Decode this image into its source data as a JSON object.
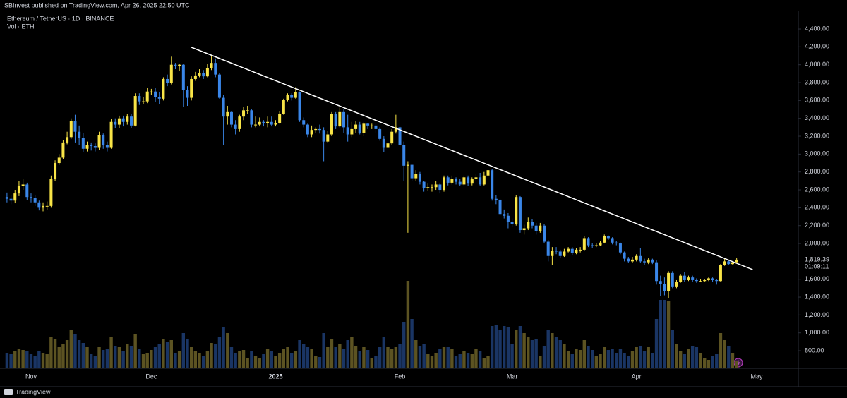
{
  "header": "SBInvest published on TradingView.com, Apr 26, 2025 22:50 UTC",
  "footer": "TradingView",
  "chart_data": {
    "type": "candlestick",
    "title": "Ethereum / TetherUS · 1D · BINANCE",
    "volume_label": "Vol · ETH",
    "up_color": "#f8e447",
    "down_color": "#3a86e8",
    "volume_up_color": "#5c5322",
    "volume_down_color": "#1a3564",
    "trendline_color": "#ffffff",
    "grid": false,
    "ylim": [
      603,
      4495
    ],
    "yticks": [
      {
        "value": 800,
        "label": "800.00"
      },
      {
        "value": 1000,
        "label": "1,000.00"
      },
      {
        "value": 1200,
        "label": "1,200.00"
      },
      {
        "value": 1400,
        "label": "1,400.00"
      },
      {
        "value": 1600,
        "label": "1,600.00"
      },
      {
        "value": 1800,
        "label": "1,800.00"
      },
      {
        "value": 2000,
        "label": "2,000.00"
      },
      {
        "value": 2200,
        "label": "2,200.00"
      },
      {
        "value": 2400,
        "label": "2,400.00"
      },
      {
        "value": 2600,
        "label": "2,600.00"
      },
      {
        "value": 2800,
        "label": "2,800.00"
      },
      {
        "value": 3000,
        "label": "3,000.00"
      },
      {
        "value": 3200,
        "label": "3,200.00"
      },
      {
        "value": 3400,
        "label": "3,400.00"
      },
      {
        "value": 3600,
        "label": "3,600.00"
      },
      {
        "value": 3800,
        "label": "3,800.00"
      },
      {
        "value": 4000,
        "label": "4,000.00"
      },
      {
        "value": 4200,
        "label": "4,200.00"
      },
      {
        "value": 4400,
        "label": "4,400.00"
      }
    ],
    "categories": [
      null,
      null,
      null,
      null,
      null,
      null,
      "Nov",
      null,
      null,
      null,
      null,
      null,
      null,
      null,
      null,
      null,
      null,
      null,
      null,
      null,
      null,
      null,
      null,
      null,
      null,
      null,
      null,
      null,
      null,
      null,
      null,
      null,
      null,
      null,
      null,
      null,
      "Dec",
      null,
      null,
      null,
      null,
      null,
      null,
      null,
      null,
      null,
      null,
      null,
      null,
      null,
      null,
      null,
      null,
      null,
      null,
      null,
      null,
      null,
      null,
      null,
      null,
      null,
      null,
      null,
      null,
      null,
      null,
      "2025",
      null,
      null,
      null,
      null,
      null,
      null,
      null,
      null,
      null,
      null,
      null,
      null,
      null,
      null,
      null,
      null,
      null,
      null,
      null,
      null,
      null,
      null,
      null,
      null,
      null,
      null,
      null,
      null,
      null,
      null,
      "Feb",
      null,
      null,
      null,
      null,
      null,
      null,
      null,
      null,
      null,
      null,
      null,
      null,
      null,
      null,
      null,
      null,
      null,
      null,
      null,
      null,
      null,
      null,
      null,
      null,
      null,
      null,
      null,
      "Mar",
      null,
      null,
      null,
      null,
      null,
      null,
      null,
      null,
      null,
      null,
      null,
      null,
      null,
      null,
      null,
      null,
      null,
      null,
      null,
      null,
      null,
      null,
      null,
      null,
      null,
      null,
      null,
      null,
      null,
      null,
      "Apr",
      null,
      null,
      null,
      null,
      null,
      null,
      null,
      null,
      null,
      null,
      null,
      null,
      null,
      null,
      null,
      null,
      null,
      null,
      null,
      null,
      null,
      null,
      null,
      null,
      null,
      null,
      null,
      null,
      null,
      "May"
    ],
    "open": [
      2520,
      2500,
      2480,
      2560,
      2640,
      2660,
      2520,
      2510,
      2460,
      2400,
      2420,
      2420,
      2720,
      2900,
      2960,
      3130,
      3190,
      3370,
      3250,
      3180,
      3060,
      3100,
      3090,
      3070,
      3210,
      3100,
      3070,
      3360,
      3330,
      3400,
      3360,
      3420,
      3320,
      3650,
      3590,
      3590,
      3700,
      3700,
      3640,
      3620,
      3840,
      3800,
      4000,
      3990,
      4000,
      3720,
      3630,
      3840,
      3880,
      3910,
      3870,
      3960,
      4020,
      3890,
      3630,
      3420,
      3470,
      3330,
      3280,
      3420,
      3490,
      3490,
      3330,
      3330,
      3360,
      3350,
      3360,
      3330,
      3350,
      3450,
      3610,
      3660,
      3630,
      3690,
      3380,
      3330,
      3220,
      3270,
      3280,
      3270,
      3140,
      3220,
      3450,
      3310,
      3470,
      3300,
      3220,
      3280,
      3330,
      3240,
      3340,
      3320,
      3320,
      3280,
      3170,
      3070,
      3120,
      3250,
      3300,
      3100,
      2870,
      2880,
      2730,
      2780,
      2690,
      2620,
      2630,
      2630,
      2660,
      2600,
      2740,
      2680,
      2720,
      2690,
      2660,
      2740,
      2670,
      2720,
      2740,
      2660,
      2760,
      2820,
      2500,
      2490,
      2330,
      2310,
      2240,
      2220,
      2520,
      2150,
      2170,
      2240,
      2200,
      2140,
      2200,
      2020,
      1860,
      1920,
      1910,
      1860,
      1910,
      1940,
      1890,
      1930,
      1930,
      2060,
      1980,
      1970,
      1980,
      2010,
      2080,
      2060,
      2010,
      2000,
      1900,
      1830,
      1800,
      1820,
      1860,
      1800,
      1790,
      1820,
      1790,
      1580,
      1550,
      1470,
      1670,
      1520,
      1570,
      1640,
      1590,
      1620,
      1590,
      1580,
      1580,
      1590,
      1610,
      1590,
      1580,
      1760,
      1800,
      1770,
      1790,
      null,
      null,
      null,
      null,
      null
    ],
    "high": [
      2570,
      2540,
      2600,
      2700,
      2720,
      2680,
      2560,
      2540,
      2480,
      2460,
      2470,
      2760,
      2930,
      3000,
      3160,
      3250,
      3400,
      3440,
      3320,
      3240,
      3140,
      3130,
      3120,
      3250,
      3230,
      3140,
      3390,
      3400,
      3430,
      3430,
      3450,
      3450,
      3680,
      3680,
      3640,
      3740,
      3730,
      3740,
      3690,
      3860,
      3890,
      4090,
      4020,
      4010,
      4010,
      3760,
      3870,
      3920,
      3950,
      3940,
      4010,
      4110,
      4070,
      3910,
      3660,
      3540,
      3480,
      3380,
      3440,
      3530,
      3540,
      3500,
      3420,
      3410,
      3380,
      3420,
      3420,
      3380,
      3480,
      3620,
      3680,
      3680,
      3750,
      3700,
      3410,
      3340,
      3320,
      3300,
      3330,
      3300,
      3260,
      3470,
      3470,
      3520,
      3500,
      3440,
      3360,
      3370,
      3360,
      3360,
      3350,
      3340,
      3340,
      3300,
      3200,
      3160,
      3280,
      3440,
      3320,
      3140,
      2920,
      2880,
      2820,
      2800,
      2700,
      2670,
      2660,
      2700,
      2680,
      2760,
      2760,
      2760,
      2740,
      2720,
      2760,
      2760,
      2740,
      2780,
      2790,
      2800,
      2860,
      2830,
      2540,
      2500,
      2380,
      2340,
      2280,
      2540,
      2530,
      2210,
      2290,
      2270,
      2230,
      2230,
      2220,
      2040,
      1960,
      1960,
      1930,
      1940,
      1960,
      1960,
      1950,
      1960,
      2080,
      2070,
      2000,
      2000,
      2030,
      2100,
      2090,
      2070,
      2030,
      2010,
      1910,
      1850,
      1850,
      1880,
      1950,
      1830,
      1840,
      1830,
      1810,
      1640,
      1620,
      1690,
      1690,
      1590,
      1660,
      1680,
      1640,
      1640,
      1610,
      1600,
      1600,
      1620,
      1620,
      1600,
      1770,
      1830,
      1810,
      1800,
      1840,
      null,
      null,
      null,
      null,
      null
    ],
    "low": [
      2460,
      2440,
      2450,
      2530,
      2600,
      2490,
      2460,
      2420,
      2370,
      2360,
      2380,
      2400,
      2700,
      2880,
      2940,
      3110,
      3170,
      3130,
      3100,
      3020,
      3030,
      3040,
      3030,
      3050,
      3060,
      3030,
      3060,
      3290,
      3290,
      3310,
      3330,
      3290,
      3310,
      3550,
      3560,
      3570,
      3660,
      3580,
      3560,
      3600,
      3760,
      3780,
      3950,
      3930,
      3530,
      3540,
      3600,
      3820,
      3860,
      3840,
      3860,
      3940,
      3860,
      3620,
      3100,
      3330,
      3300,
      3220,
      3250,
      3380,
      3450,
      3300,
      3300,
      3310,
      3310,
      3300,
      3310,
      3310,
      3340,
      3440,
      3590,
      3600,
      3620,
      3360,
      3300,
      3190,
      3190,
      3240,
      3230,
      2920,
      3130,
      3200,
      3280,
      3300,
      3240,
      3140,
      3190,
      3240,
      3220,
      3200,
      3280,
      3280,
      3240,
      3150,
      3020,
      3040,
      3100,
      3230,
      3080,
      2700,
      2120,
      2700,
      2700,
      2660,
      2580,
      2590,
      2580,
      2600,
      2560,
      2580,
      2650,
      2660,
      2660,
      2640,
      2650,
      2640,
      2650,
      2700,
      2640,
      2650,
      2740,
      2480,
      2440,
      2310,
      2280,
      2170,
      2190,
      2200,
      2120,
      2100,
      2150,
      2170,
      2100,
      2120,
      2000,
      1800,
      1760,
      1880,
      1840,
      1850,
      1900,
      1870,
      1880,
      1900,
      1920,
      1960,
      1950,
      1960,
      1970,
      2000,
      2040,
      1990,
      1980,
      1880,
      1800,
      1780,
      1780,
      1800,
      1780,
      1760,
      1770,
      1770,
      1540,
      1410,
      1420,
      1390,
      1500,
      1500,
      1560,
      1570,
      1580,
      1570,
      1560,
      1570,
      1570,
      1580,
      1570,
      1540,
      1570,
      1750,
      1760,
      1760,
      1780,
      null,
      null,
      null,
      null,
      null
    ],
    "close": [
      2500,
      2480,
      2560,
      2640,
      2660,
      2520,
      2510,
      2460,
      2400,
      2420,
      2420,
      2720,
      2900,
      2960,
      3130,
      3190,
      3370,
      3250,
      3180,
      3060,
      3100,
      3090,
      3070,
      3210,
      3100,
      3070,
      3360,
      3330,
      3400,
      3360,
      3420,
      3320,
      3650,
      3590,
      3590,
      3700,
      3700,
      3640,
      3620,
      3840,
      3800,
      4000,
      3990,
      4000,
      3720,
      3630,
      3840,
      3880,
      3910,
      3870,
      3960,
      4020,
      3890,
      3630,
      3420,
      3470,
      3330,
      3280,
      3420,
      3490,
      3490,
      3330,
      3330,
      3360,
      3350,
      3360,
      3330,
      3350,
      3450,
      3610,
      3660,
      3630,
      3690,
      3380,
      3330,
      3220,
      3270,
      3280,
      3270,
      3140,
      3220,
      3450,
      3310,
      3470,
      3300,
      3220,
      3280,
      3330,
      3240,
      3340,
      3320,
      3320,
      3280,
      3170,
      3070,
      3120,
      3250,
      3300,
      3100,
      2870,
      2880,
      2730,
      2780,
      2690,
      2620,
      2630,
      2630,
      2660,
      2600,
      2740,
      2680,
      2720,
      2690,
      2660,
      2740,
      2670,
      2720,
      2740,
      2660,
      2760,
      2820,
      2500,
      2490,
      2330,
      2310,
      2240,
      2220,
      2520,
      2150,
      2170,
      2240,
      2200,
      2140,
      2200,
      2020,
      1860,
      1920,
      1910,
      1860,
      1910,
      1940,
      1890,
      1930,
      1930,
      2060,
      1980,
      1970,
      1980,
      2010,
      2080,
      2060,
      2010,
      2000,
      1900,
      1830,
      1800,
      1820,
      1860,
      1800,
      1790,
      1820,
      1790,
      1580,
      1550,
      1470,
      1670,
      1520,
      1570,
      1640,
      1590,
      1620,
      1590,
      1580,
      1580,
      1590,
      1610,
      1590,
      1580,
      1760,
      1800,
      1770,
      1790,
      1819.39,
      null,
      null,
      null,
      null,
      null
    ],
    "volume": [
      220000,
      200000,
      250000,
      280000,
      260000,
      240000,
      200000,
      180000,
      240000,
      220000,
      200000,
      450000,
      420000,
      300000,
      350000,
      400000,
      550000,
      480000,
      400000,
      360000,
      300000,
      200000,
      180000,
      300000,
      260000,
      280000,
      440000,
      320000,
      300000,
      250000,
      350000,
      320000,
      480000,
      280000,
      200000,
      220000,
      260000,
      300000,
      340000,
      420000,
      380000,
      400000,
      220000,
      250000,
      500000,
      420000,
      300000,
      240000,
      220000,
      180000,
      240000,
      360000,
      350000,
      450000,
      580000,
      500000,
      300000,
      220000,
      240000,
      260000,
      150000,
      250000,
      180000,
      140000,
      200000,
      280000,
      240000,
      180000,
      220000,
      280000,
      300000,
      220000,
      250000,
      400000,
      350000,
      300000,
      280000,
      180000,
      160000,
      500000,
      300000,
      420000,
      300000,
      350000,
      280000,
      400000,
      450000,
      320000,
      250000,
      300000,
      260000,
      150000,
      180000,
      300000,
      450000,
      300000,
      280000,
      300000,
      350000,
      650000,
      1240000,
      700000,
      400000,
      320000,
      350000,
      200000,
      180000,
      220000,
      280000,
      300000,
      300000,
      280000,
      180000,
      200000,
      250000,
      220000,
      200000,
      280000,
      250000,
      150000,
      180000,
      600000,
      620000,
      550000,
      600000,
      580000,
      350000,
      550000,
      600000,
      500000,
      450000,
      400000,
      420000,
      180000,
      320000,
      550000,
      500000,
      450000,
      400000,
      350000,
      250000,
      200000,
      280000,
      260000,
      400000,
      320000,
      260000,
      180000,
      200000,
      300000,
      260000,
      280000,
      220000,
      280000,
      220000,
      180000,
      250000,
      300000,
      320000,
      250000,
      300000,
      220000,
      700000,
      970000,
      970000,
      950000,
      550000,
      350000,
      250000,
      200000,
      280000,
      320000,
      300000,
      220000,
      140000,
      120000,
      180000,
      200000,
      500000,
      400000,
      320000,
      220000,
      100000,
      null,
      null,
      null,
      null,
      null
    ],
    "trendline": {
      "start": [
        46,
        4195
      ],
      "end": [
        186,
        1708
      ]
    },
    "last_price_label": "1,819.39",
    "countdown": "01:09:11"
  }
}
